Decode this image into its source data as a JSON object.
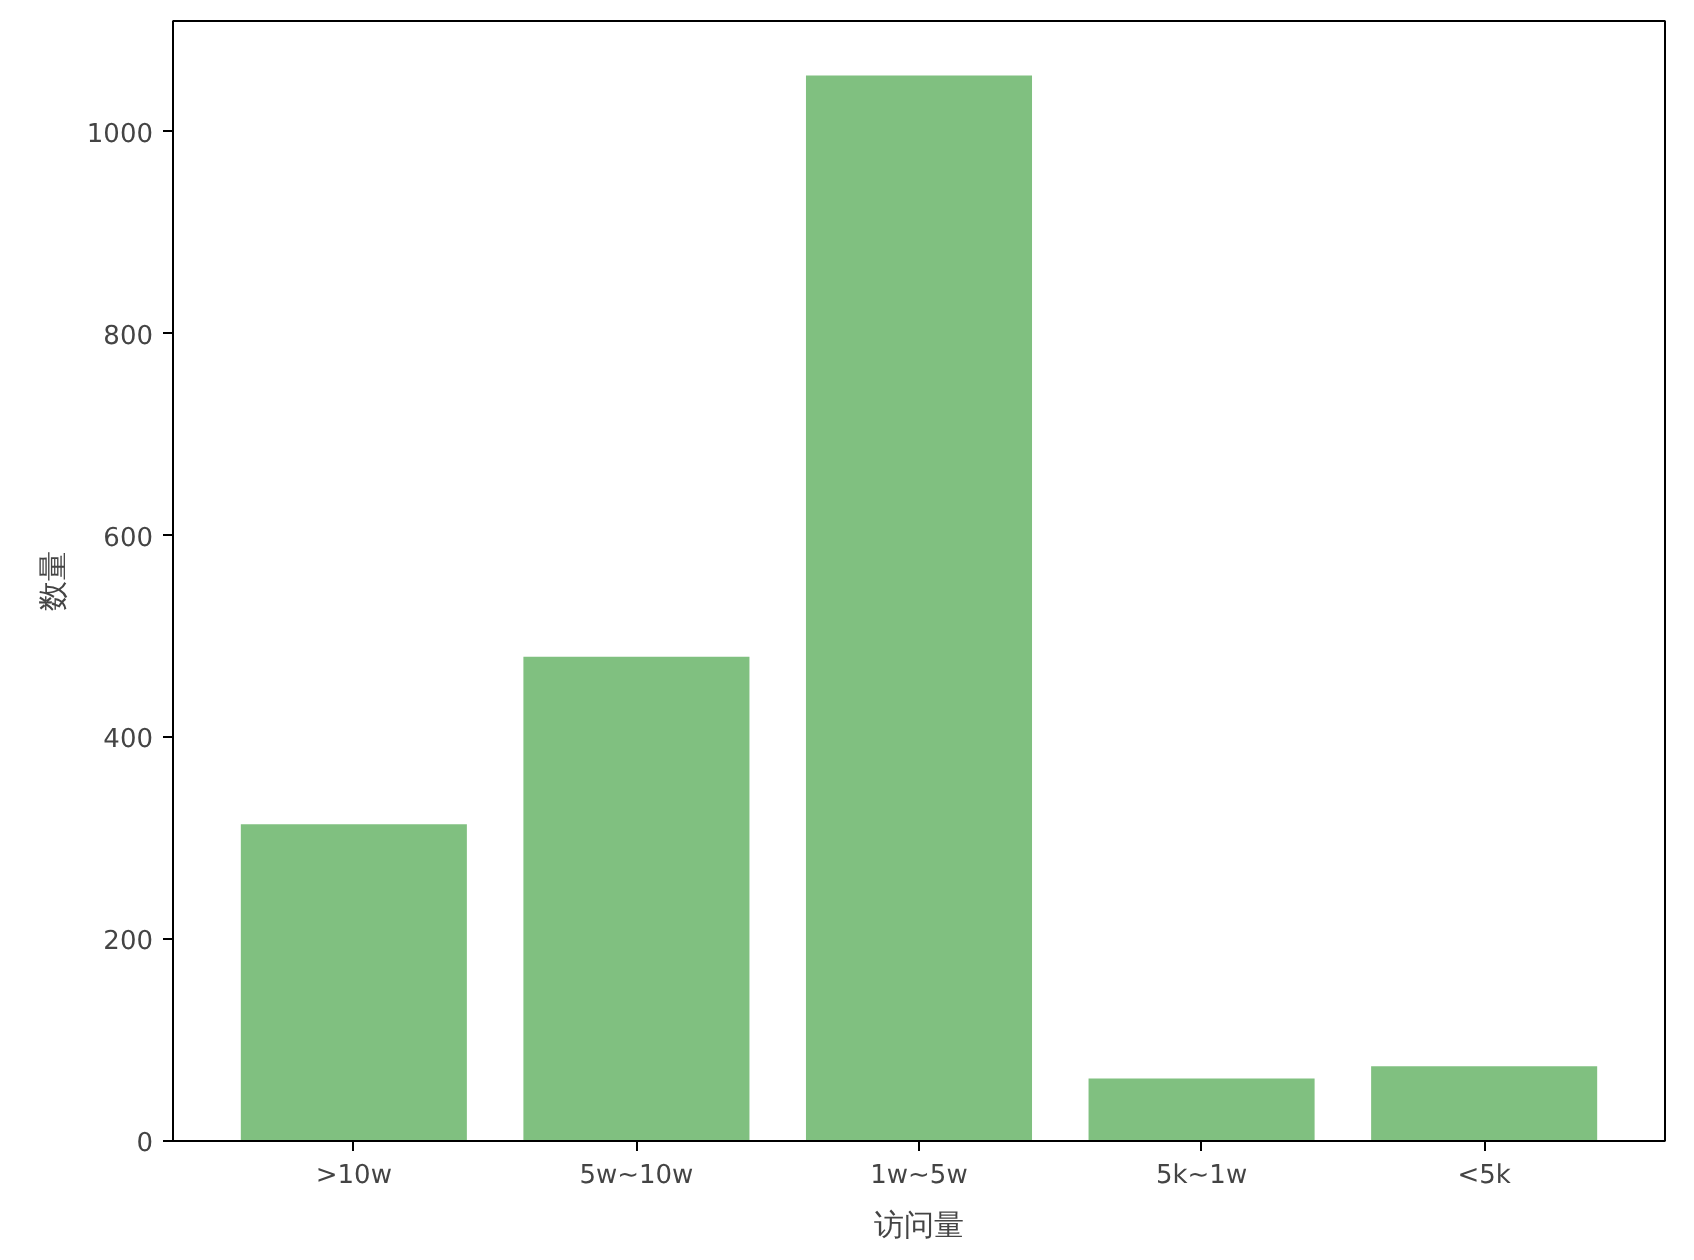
{
  "chart_data": {
    "type": "bar",
    "xlabel": "访问量",
    "ylabel": "数量",
    "categories": [
      ">10w",
      "5w~10w",
      "1w~5w",
      "5k~1w",
      "<5k"
    ],
    "values": [
      314,
      480,
      1056,
      62,
      74
    ],
    "color": "#80c080",
    "ylim": [
      0,
      1110
    ],
    "yticks": [
      0,
      200,
      400,
      600,
      800,
      1000
    ],
    "grid": false
  }
}
